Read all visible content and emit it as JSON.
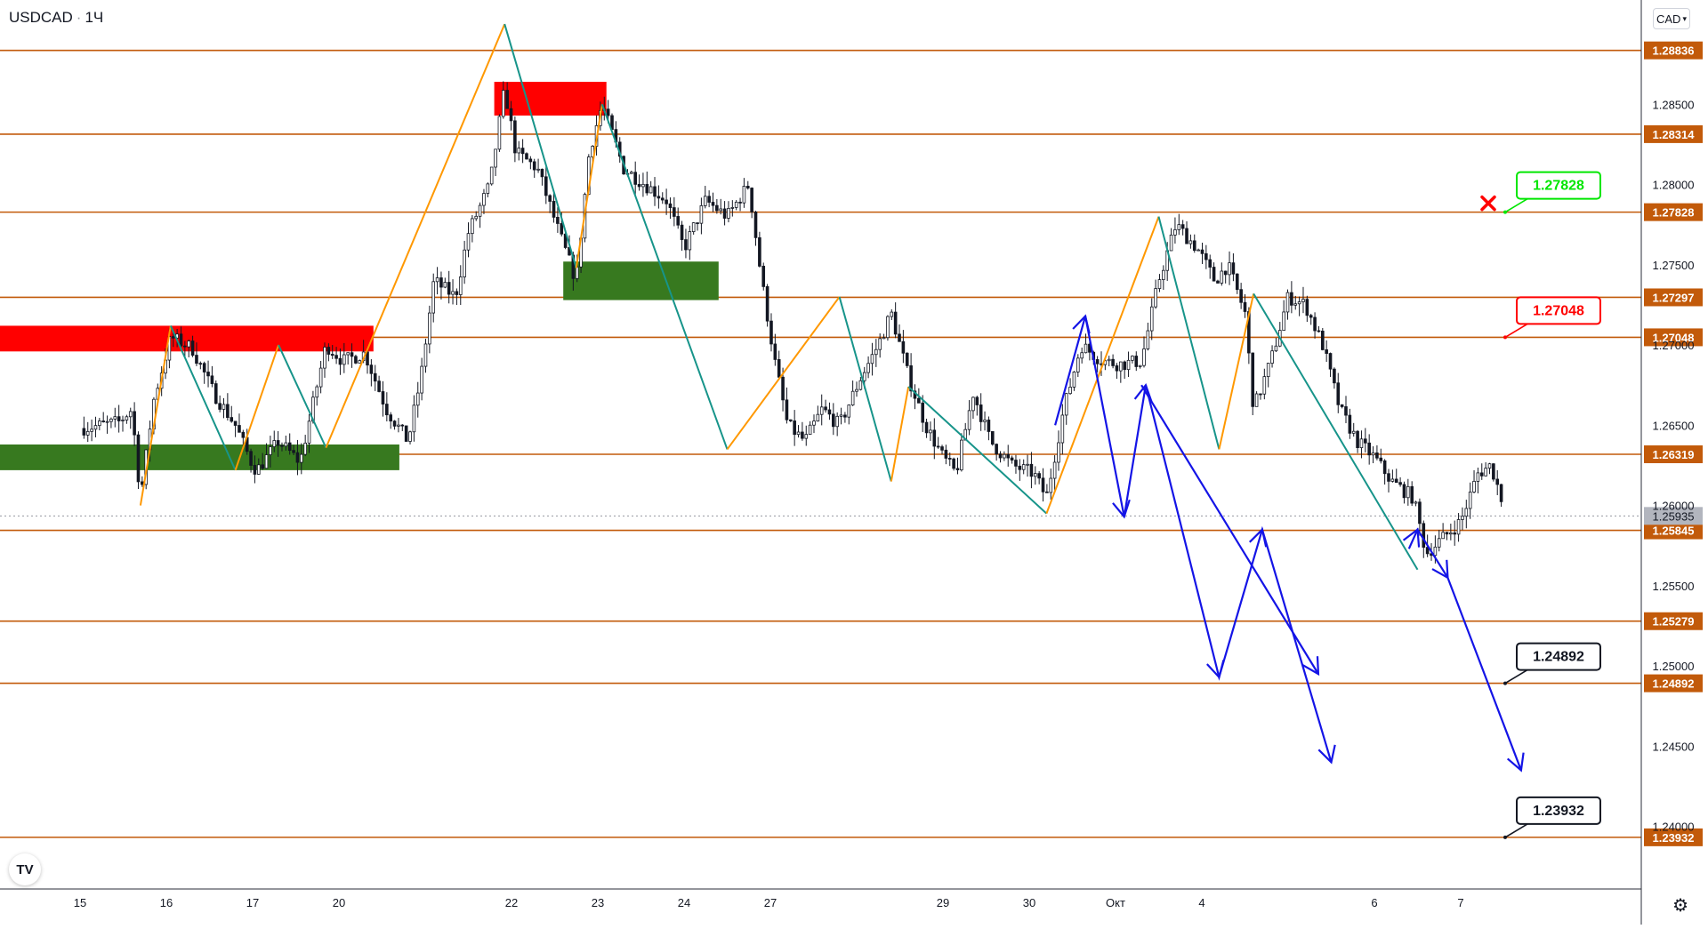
{
  "header": {
    "symbol": "USDCAD",
    "interval": "1Ч",
    "currency": "CAD"
  },
  "icons": {
    "logo": "tradingview-logo",
    "settings": "gear-icon",
    "cancel_marker": "red-x-icon"
  },
  "colors": {
    "level_line": "#c25a0a",
    "level_label_bg": "#c25a0a",
    "up_leg": "#ff9800",
    "down_leg": "#17948a",
    "projection": "#1414e6",
    "supply_zone": "#ff0000",
    "demand_zone": "#37791f",
    "candle": "#131722",
    "target_green": "#00e600",
    "target_red": "#ff0000",
    "target_black": "#131722"
  },
  "chart_data": {
    "type": "candlestick",
    "symbol": "USDCAD",
    "ylim": [
      1.2361,
      1.2915
    ],
    "y_ticks": [
      "1.28500",
      "1.28000",
      "1.27500",
      "1.27000",
      "1.26500",
      "1.26000",
      "1.25500",
      "1.25000",
      "1.24500",
      "1.24000"
    ],
    "x_ticks": [
      {
        "label": "15",
        "i": 0
      },
      {
        "label": "16",
        "i": 1
      },
      {
        "label": "17",
        "i": 2
      },
      {
        "label": "20",
        "i": 3
      },
      {
        "label": "22",
        "i": 5
      },
      {
        "label": "23",
        "i": 6
      },
      {
        "label": "24",
        "i": 7
      },
      {
        "label": "27",
        "i": 8
      },
      {
        "label": "29",
        "i": 10
      },
      {
        "label": "30",
        "i": 11
      },
      {
        "label": "Окт",
        "i": 12
      },
      {
        "label": "4",
        "i": 13
      },
      {
        "label": "6",
        "i": 15
      },
      {
        "label": "7",
        "i": 16
      }
    ],
    "levels": [
      "1.28836",
      "1.28314",
      "1.27828",
      "1.27297",
      "1.27048",
      "1.26319",
      "1.25845",
      "1.25279",
      "1.24892",
      "1.23932"
    ],
    "current_price": "1.25935",
    "price_path": [
      [
        0.0,
        1.2648
      ],
      [
        0.25,
        1.265
      ],
      [
        0.45,
        1.2652
      ],
      [
        0.6,
        1.266
      ],
      [
        0.7,
        1.2605
      ],
      [
        0.85,
        1.2665
      ],
      [
        1.05,
        1.2705
      ],
      [
        1.3,
        1.2698
      ],
      [
        1.55,
        1.267
      ],
      [
        1.8,
        1.265
      ],
      [
        2.0,
        1.2625
      ],
      [
        2.05,
        1.2622
      ],
      [
        2.3,
        1.264
      ],
      [
        2.55,
        1.2627
      ],
      [
        2.85,
        1.27
      ],
      [
        3.05,
        1.269
      ],
      [
        3.3,
        1.2695
      ],
      [
        3.55,
        1.266
      ],
      [
        3.8,
        1.264
      ],
      [
        3.95,
        1.268
      ],
      [
        4.1,
        1.274
      ],
      [
        4.35,
        1.273
      ],
      [
        4.5,
        1.277
      ],
      [
        4.75,
        1.28
      ],
      [
        4.92,
        1.286
      ],
      [
        5.05,
        1.282
      ],
      [
        5.3,
        1.281
      ],
      [
        5.55,
        1.277
      ],
      [
        5.75,
        1.274
      ],
      [
        5.9,
        1.282
      ],
      [
        6.05,
        1.285
      ],
      [
        6.3,
        1.281
      ],
      [
        6.55,
        1.28
      ],
      [
        6.8,
        1.279
      ],
      [
        7.0,
        1.276
      ],
      [
        7.25,
        1.279
      ],
      [
        7.5,
        1.278
      ],
      [
        7.75,
        1.28
      ],
      [
        7.9,
        1.274
      ],
      [
        8.05,
        1.269
      ],
      [
        8.2,
        1.265
      ],
      [
        8.4,
        1.264
      ],
      [
        8.6,
        1.266
      ],
      [
        8.8,
        1.265
      ],
      [
        9.05,
        1.268
      ],
      [
        9.25,
        1.27
      ],
      [
        9.4,
        1.272
      ],
      [
        9.6,
        1.268
      ],
      [
        9.8,
        1.265
      ],
      [
        10.0,
        1.263
      ],
      [
        10.15,
        1.262
      ],
      [
        10.35,
        1.267
      ],
      [
        10.55,
        1.264
      ],
      [
        10.8,
        1.2625
      ],
      [
        11.05,
        1.262
      ],
      [
        11.2,
        1.2605
      ],
      [
        11.4,
        1.266
      ],
      [
        11.6,
        1.27
      ],
      [
        11.85,
        1.269
      ],
      [
        12.05,
        1.2688
      ],
      [
        12.3,
        1.269
      ],
      [
        12.5,
        1.274
      ],
      [
        12.7,
        1.2775
      ],
      [
        12.95,
        1.276
      ],
      [
        13.15,
        1.274
      ],
      [
        13.3,
        1.275
      ],
      [
        13.5,
        1.272
      ],
      [
        13.6,
        1.266
      ],
      [
        13.8,
        1.269
      ],
      [
        14.0,
        1.273
      ],
      [
        14.2,
        1.2725
      ],
      [
        14.4,
        1.27
      ],
      [
        14.6,
        1.266
      ],
      [
        14.8,
        1.264
      ],
      [
        15.0,
        1.263
      ],
      [
        15.2,
        1.2615
      ],
      [
        15.45,
        1.2605
      ],
      [
        15.6,
        1.257
      ],
      [
        15.8,
        1.258
      ],
      [
        16.0,
        1.259
      ],
      [
        16.2,
        1.262
      ],
      [
        16.35,
        1.2625
      ],
      [
        16.5,
        1.26
      ]
    ],
    "zigzag": [
      [
        0.7,
        1.26,
        "up"
      ],
      [
        1.05,
        1.2712,
        "down"
      ],
      [
        1.8,
        1.2622,
        "up"
      ],
      [
        2.3,
        1.27,
        "down"
      ],
      [
        2.85,
        1.2636,
        "up"
      ],
      [
        4.92,
        1.29,
        "down"
      ],
      [
        5.75,
        1.2748,
        "up"
      ],
      [
        6.05,
        1.285,
        "down"
      ],
      [
        7.5,
        1.2635,
        "up"
      ],
      [
        8.8,
        1.273,
        "down"
      ],
      [
        9.4,
        1.2615,
        "up"
      ],
      [
        9.6,
        1.2674,
        "down"
      ],
      [
        11.2,
        1.2595,
        "up"
      ],
      [
        12.5,
        1.278,
        "down"
      ],
      [
        13.2,
        1.2635,
        "up"
      ],
      [
        13.6,
        1.2732,
        "down"
      ],
      [
        15.5,
        1.256,
        null
      ]
    ],
    "projections": [
      [
        [
          11.3,
          1.265
        ],
        [
          11.65,
          1.2718
        ],
        [
          12.1,
          1.2593
        ],
        [
          12.35,
          1.2675
        ],
        [
          13.2,
          1.2493
        ],
        [
          13.7,
          1.2585
        ],
        [
          14.5,
          1.244
        ]
      ],
      [
        [
          12.3,
          1.2675
        ],
        [
          14.35,
          1.2495
        ]
      ],
      [
        [
          15.4,
          1.2573
        ],
        [
          15.5,
          1.2585
        ],
        [
          15.85,
          1.2555
        ],
        [
          16.7,
          1.2435
        ]
      ]
    ],
    "zones": [
      {
        "kind": "supply",
        "x0": 0.0,
        "x1": 3.4,
        "y_top": 1.2712,
        "y_bottom": 1.2696
      },
      {
        "kind": "demand",
        "x0": 0.0,
        "x1": 3.7,
        "y_top": 1.2638,
        "y_bottom": 1.2622
      },
      {
        "kind": "supply",
        "x0": 4.8,
        "x1": 6.1,
        "y_top": 1.2864,
        "y_bottom": 1.2843
      },
      {
        "kind": "demand",
        "x0": 5.6,
        "x1": 7.4,
        "y_top": 1.2752,
        "y_bottom": 1.2728
      }
    ],
    "targets": [
      {
        "label": "1.27828",
        "status": "cancelled",
        "color": "green",
        "value": 1.27828
      },
      {
        "label": "1.27048",
        "status": "open",
        "color": "red",
        "value": 1.27048
      },
      {
        "label": "1.24892",
        "status": "open",
        "color": "black",
        "value": 1.24892
      },
      {
        "label": "1.23932",
        "status": "open",
        "color": "black",
        "value": 1.23932
      }
    ]
  }
}
